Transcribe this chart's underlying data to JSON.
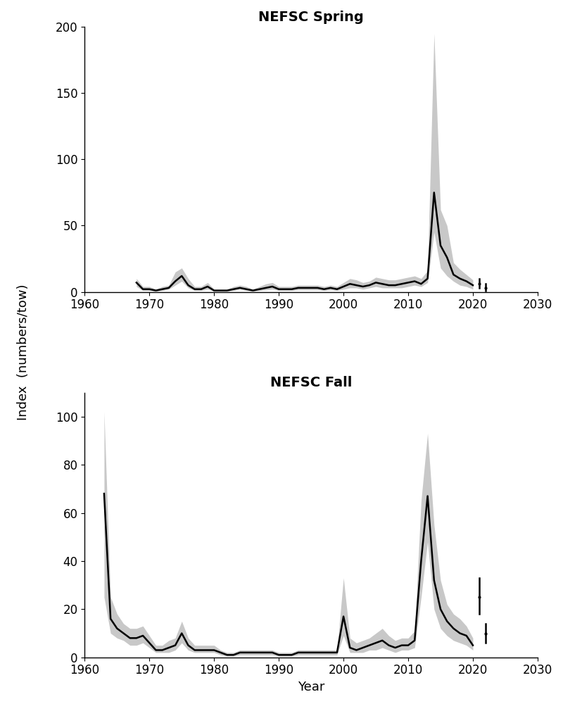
{
  "spring": {
    "title": "NEFSC Spring",
    "years": [
      1968,
      1969,
      1970,
      1971,
      1972,
      1973,
      1974,
      1975,
      1976,
      1977,
      1978,
      1979,
      1980,
      1981,
      1982,
      1983,
      1984,
      1985,
      1986,
      1987,
      1988,
      1989,
      1990,
      1991,
      1992,
      1993,
      1994,
      1995,
      1996,
      1997,
      1998,
      1999,
      2000,
      2001,
      2002,
      2003,
      2004,
      2005,
      2006,
      2007,
      2008,
      2009,
      2010,
      2011,
      2012,
      2013,
      2014,
      2015,
      2016,
      2017,
      2018,
      2019,
      2020
    ],
    "index": [
      7,
      2,
      2,
      1,
      2,
      3,
      8,
      12,
      5,
      2,
      2,
      4,
      1,
      1,
      1,
      2,
      3,
      2,
      1,
      2,
      3,
      4,
      2,
      2,
      2,
      3,
      3,
      3,
      3,
      2,
      3,
      2,
      4,
      6,
      5,
      4,
      5,
      7,
      6,
      5,
      5,
      6,
      7,
      8,
      6,
      10,
      75,
      35,
      26,
      13,
      10,
      8,
      5
    ],
    "lo": [
      4,
      1,
      1,
      0.5,
      1,
      2,
      5,
      8,
      3,
      1,
      1,
      2,
      0.5,
      0.5,
      0.5,
      1,
      2,
      1,
      0.5,
      1,
      1.5,
      2,
      1,
      1,
      1,
      1.5,
      1.5,
      1.5,
      1.5,
      1,
      1.5,
      1,
      2,
      3,
      3,
      2,
      3,
      4,
      3,
      3,
      3,
      3,
      4,
      5,
      4,
      7,
      45,
      18,
      12,
      8,
      5,
      4,
      2
    ],
    "hi": [
      10,
      4,
      4,
      2,
      4,
      5,
      15,
      18,
      10,
      4,
      4,
      7,
      2,
      2,
      2,
      4,
      5,
      4,
      2,
      4,
      6,
      7,
      4,
      4,
      4,
      5,
      5,
      5,
      5,
      4,
      5,
      4,
      7,
      10,
      9,
      7,
      8,
      11,
      10,
      9,
      9,
      10,
      11,
      12,
      10,
      16,
      195,
      62,
      50,
      22,
      17,
      13,
      9
    ],
    "ylim": [
      0,
      200
    ],
    "yticks": [
      0,
      50,
      100,
      150,
      200
    ],
    "broken_years": [
      2021,
      2022
    ],
    "broken_index": [
      6,
      3
    ],
    "broken_lo": [
      3,
      1
    ],
    "broken_hi": [
      10,
      6
    ]
  },
  "fall": {
    "title": "NEFSC Fall",
    "years": [
      1963,
      1964,
      1965,
      1966,
      1967,
      1968,
      1969,
      1970,
      1971,
      1972,
      1973,
      1974,
      1975,
      1976,
      1977,
      1978,
      1979,
      1980,
      1981,
      1982,
      1983,
      1984,
      1985,
      1986,
      1987,
      1988,
      1989,
      1990,
      1991,
      1992,
      1993,
      1994,
      1995,
      1996,
      1997,
      1998,
      1999,
      2000,
      2001,
      2002,
      2003,
      2004,
      2005,
      2006,
      2007,
      2008,
      2009,
      2010,
      2011,
      2012,
      2013,
      2014,
      2015,
      2016,
      2017,
      2018,
      2019,
      2020
    ],
    "index": [
      68,
      16,
      12,
      10,
      8,
      8,
      9,
      6,
      3,
      3,
      4,
      5,
      10,
      5,
      3,
      3,
      3,
      3,
      2,
      1,
      1,
      2,
      2,
      2,
      2,
      2,
      2,
      1,
      1,
      1,
      2,
      2,
      2,
      2,
      2,
      2,
      2,
      17,
      4,
      3,
      4,
      5,
      6,
      7,
      5,
      4,
      5,
      5,
      7,
      40,
      67,
      32,
      20,
      15,
      12,
      10,
      9,
      5
    ],
    "lo": [
      25,
      10,
      8,
      7,
      5,
      5,
      6,
      4,
      2,
      2,
      2,
      3,
      6,
      3,
      2,
      2,
      2,
      2,
      1,
      0.5,
      0.5,
      1,
      1,
      1,
      1,
      1,
      1,
      0.5,
      0.5,
      0.5,
      1,
      1,
      1,
      1,
      1,
      1,
      1,
      9,
      2,
      2,
      2,
      3,
      3,
      4,
      3,
      2,
      3,
      3,
      4,
      25,
      48,
      20,
      12,
      9,
      7,
      6,
      5,
      3
    ],
    "hi": [
      102,
      25,
      18,
      14,
      12,
      12,
      13,
      9,
      5,
      5,
      7,
      8,
      15,
      8,
      5,
      5,
      5,
      5,
      3,
      2,
      2,
      3,
      3,
      3,
      3,
      3,
      3,
      2,
      2,
      2,
      3,
      3,
      3,
      3,
      3,
      3,
      3,
      33,
      8,
      6,
      7,
      8,
      10,
      12,
      9,
      7,
      8,
      8,
      11,
      65,
      93,
      55,
      32,
      22,
      18,
      16,
      13,
      8
    ],
    "ylim": [
      0,
      110
    ],
    "yticks": [
      0,
      20,
      40,
      60,
      80,
      100
    ],
    "broken_years": [
      2021,
      2022
    ],
    "broken_index": [
      25,
      10
    ],
    "broken_lo": [
      18,
      6
    ],
    "broken_hi": [
      33,
      14
    ]
  },
  "xlim": [
    1960,
    2030
  ],
  "xticks": [
    1960,
    1970,
    1980,
    1990,
    2000,
    2010,
    2020,
    2030
  ],
  "ylabel": "Index  (numbers/tow)",
  "xlabel": "Year",
  "fill_color": "#c8c8c8",
  "line_color": "#000000",
  "bg_color": "#ffffff",
  "title_fontsize": 14,
  "label_fontsize": 13,
  "tick_fontsize": 12,
  "line_width": 1.8
}
